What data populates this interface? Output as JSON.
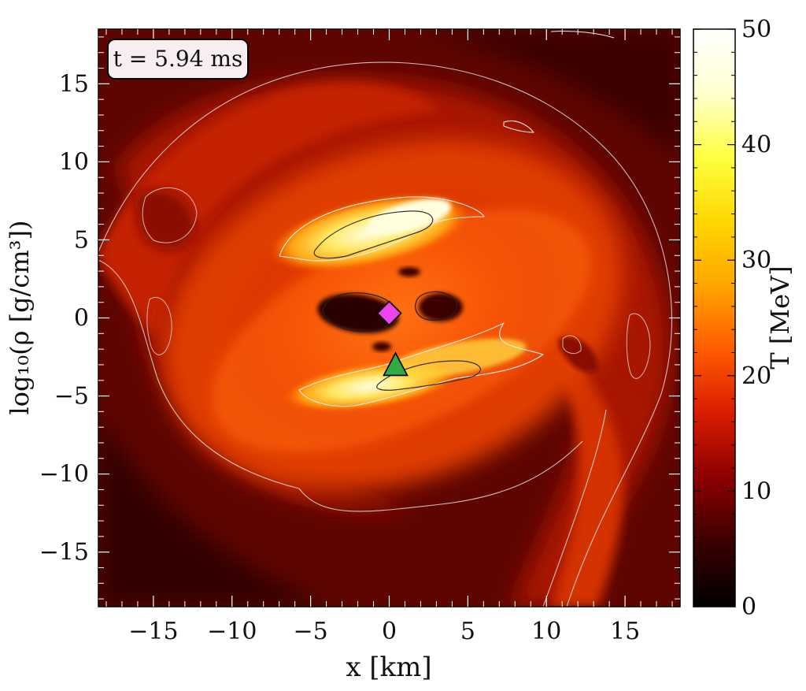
{
  "chart_data": {
    "type": "heatmap",
    "title": "",
    "xlabel": "x [km]",
    "ylabel": "log₁₀(ρ [g/cm³])",
    "xlim": [
      -18.5,
      18.5
    ],
    "ylim": [
      -18.5,
      18.5
    ],
    "x_ticks": [
      -15,
      -10,
      -5,
      0,
      5,
      10,
      15
    ],
    "x_tick_labels": [
      "−15",
      "−10",
      "−5",
      "0",
      "5",
      "10",
      "15"
    ],
    "y_ticks": [
      -15,
      -10,
      -5,
      0,
      5,
      10,
      15
    ],
    "y_tick_labels": [
      "−15",
      "−10",
      "−5",
      "0",
      "5",
      "10",
      "15"
    ],
    "colorbar": {
      "label": "T [MeV]",
      "range": [
        0,
        50
      ],
      "ticks": [
        0,
        10,
        20,
        30,
        40,
        50
      ],
      "tick_labels": [
        "0",
        "10",
        "20",
        "30",
        "40",
        "50"
      ],
      "colormap": [
        "#000000",
        "#3a0000",
        "#8b0000",
        "#d81b00",
        "#ff5a00",
        "#ffa500",
        "#ffd700",
        "#ffff40",
        "#ffffd0",
        "#ffffff"
      ]
    },
    "annotation": "t = 5.94 ms",
    "markers": [
      {
        "shape": "diamond",
        "x": 0.0,
        "y": 0.3,
        "color": "#ee44ee"
      },
      {
        "shape": "triangle",
        "x": 0.4,
        "y": -3.0,
        "color": "#33aa44"
      }
    ],
    "grid": false
  }
}
